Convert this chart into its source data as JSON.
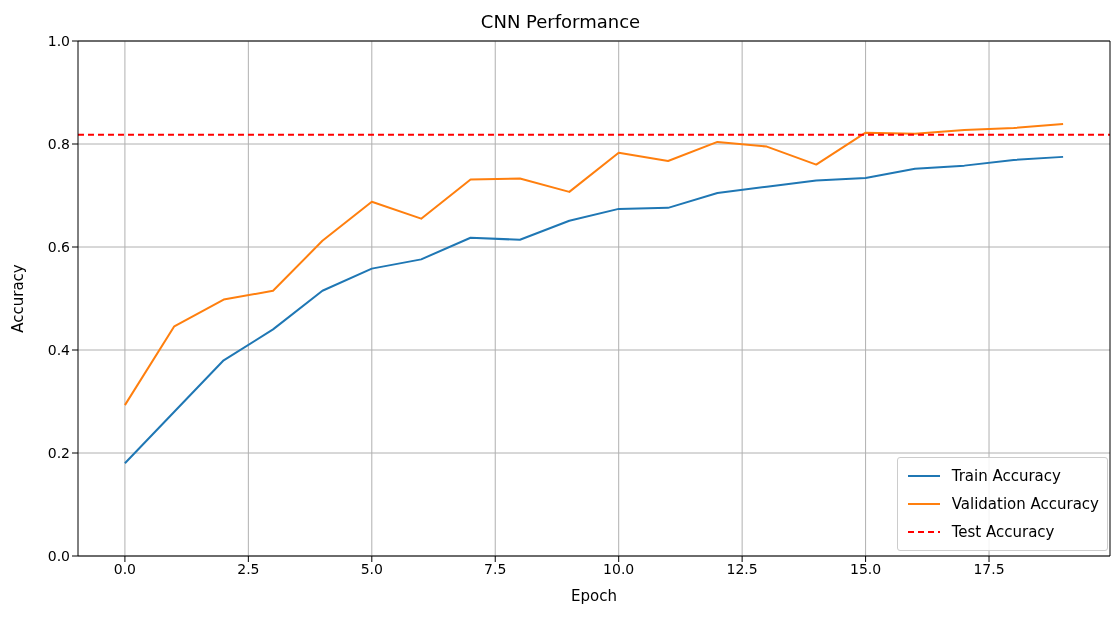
{
  "chart_data": {
    "type": "line",
    "title": "CNN Performance",
    "xlabel": "Epoch",
    "ylabel": "Accuracy",
    "x": [
      0,
      1,
      2,
      3,
      4,
      5,
      6,
      7,
      8,
      9,
      10,
      11,
      12,
      13,
      14,
      15,
      16,
      17,
      18,
      19
    ],
    "series": [
      {
        "name": "Train Accuracy",
        "color": "#1f77b4",
        "values": [
          0.18,
          0.28,
          0.38,
          0.44,
          0.515,
          0.558,
          0.576,
          0.618,
          0.614,
          0.651,
          0.674,
          0.676,
          0.705,
          0.717,
          0.729,
          0.734,
          0.752,
          0.758,
          0.769,
          0.775
        ]
      },
      {
        "name": "Validation Accuracy",
        "color": "#ff7f0e",
        "values": [
          0.293,
          0.446,
          0.498,
          0.515,
          0.612,
          0.688,
          0.655,
          0.731,
          0.733,
          0.707,
          0.783,
          0.767,
          0.804,
          0.795,
          0.76,
          0.822,
          0.82,
          0.827,
          0.831,
          0.839
        ]
      }
    ],
    "ref_lines": [
      {
        "axis": "y",
        "value": 0.818,
        "label": "Test Accuracy",
        "color": "#ff0000",
        "line_style": "dashed"
      }
    ],
    "xlim": [
      -0.95,
      19.95
    ],
    "xticks": [
      {
        "value": 0,
        "label": "0.0"
      },
      {
        "value": 2.5,
        "label": "2.5"
      },
      {
        "value": 5,
        "label": "5.0"
      },
      {
        "value": 7.5,
        "label": "7.5"
      },
      {
        "value": 10,
        "label": "10.0"
      },
      {
        "value": 12.5,
        "label": "12.5"
      },
      {
        "value": 15,
        "label": "15.0"
      },
      {
        "value": 17.5,
        "label": "17.5"
      }
    ],
    "ylim": [
      0,
      1
    ],
    "yticks": [
      {
        "value": 0,
        "label": "0.0"
      },
      {
        "value": 0.2,
        "label": "0.2"
      },
      {
        "value": 0.4,
        "label": "0.4"
      },
      {
        "value": 0.6,
        "label": "0.6"
      },
      {
        "value": 0.8,
        "label": "0.8"
      },
      {
        "value": 1,
        "label": "1.0"
      }
    ],
    "grid": true,
    "legend": "bottom right",
    "marker": "none",
    "line_style": "solid"
  }
}
